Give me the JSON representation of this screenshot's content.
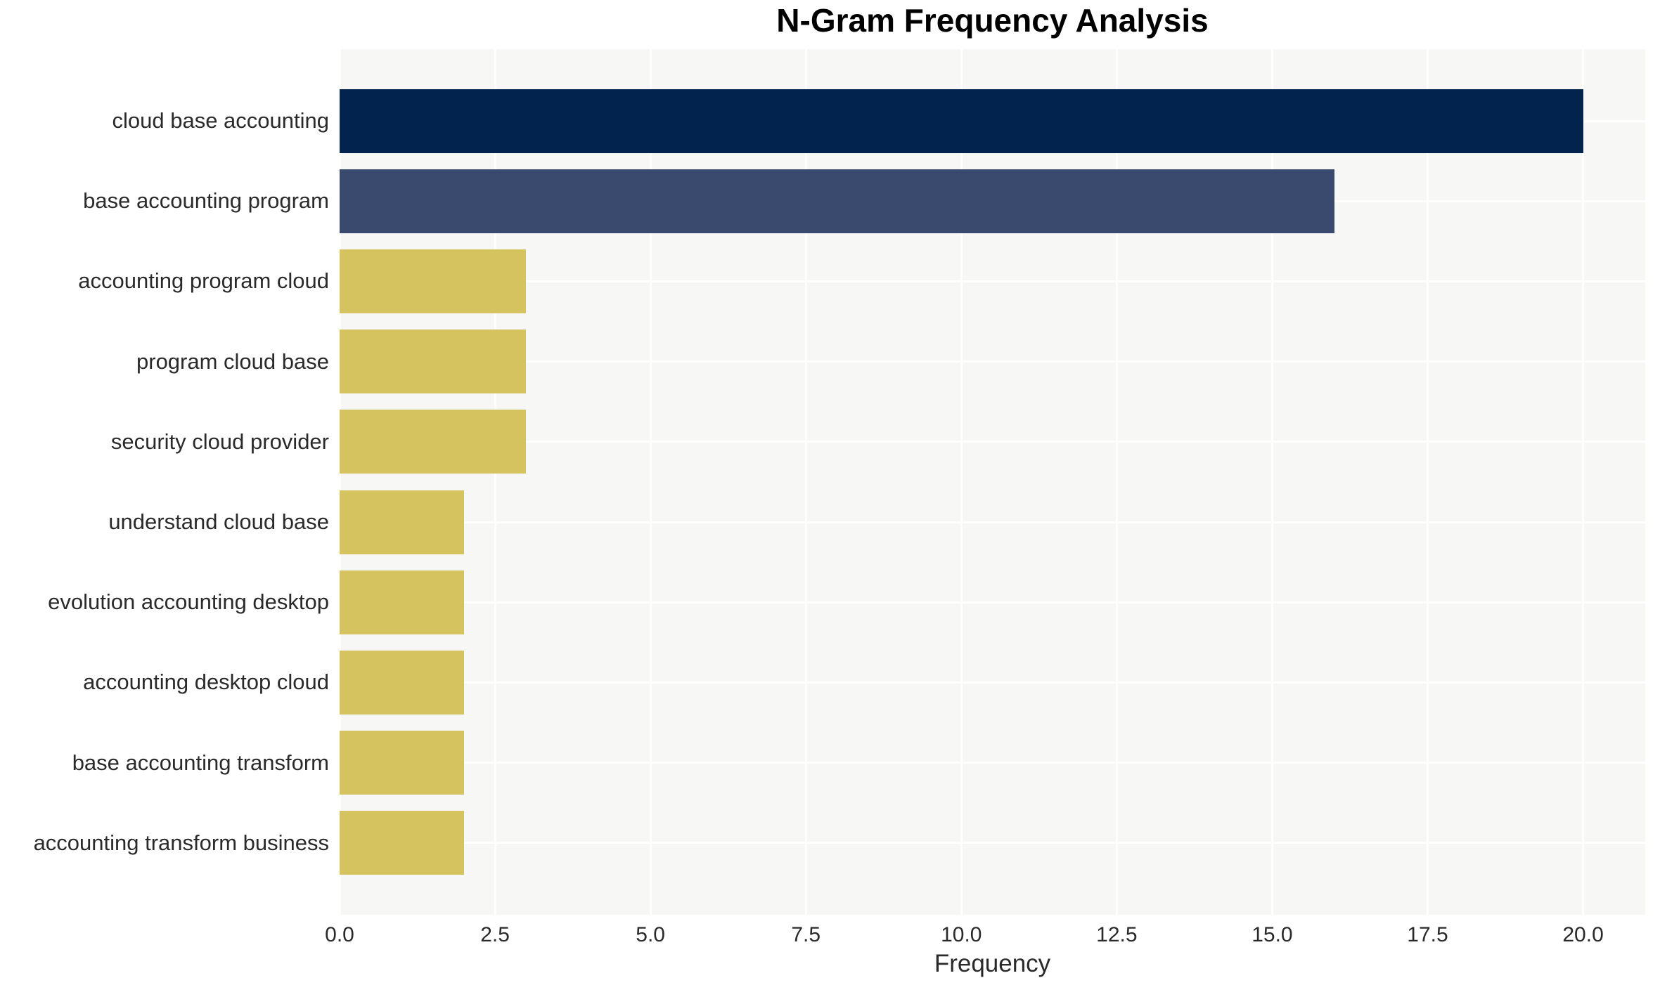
{
  "page": {
    "title": "N-Gram Frequency Analysis"
  },
  "chart_data": {
    "type": "bar",
    "orientation": "horizontal",
    "title": "N-Gram Frequency Analysis",
    "xlabel": "Frequency",
    "categories": [
      "cloud base accounting",
      "base accounting program",
      "accounting program cloud",
      "program cloud base",
      "security cloud provider",
      "understand cloud base",
      "evolution accounting desktop",
      "accounting desktop cloud",
      "base accounting transform",
      "accounting transform business"
    ],
    "values": [
      20,
      16,
      3,
      3,
      3,
      2,
      2,
      2,
      2,
      2
    ],
    "bar_colors": [
      "#02234e",
      "#3a496e",
      "#d5c35f",
      "#d5c35f",
      "#d5c35f",
      "#d5c35f",
      "#d5c35f",
      "#d5c35f",
      "#d5c35f",
      "#d5c35f"
    ],
    "xticks": [
      "0.0",
      "2.5",
      "5.0",
      "7.5",
      "10.0",
      "12.5",
      "15.0",
      "17.5",
      "20.0"
    ],
    "xtick_values": [
      0,
      2.5,
      5,
      7.5,
      10,
      12.5,
      15,
      17.5,
      20
    ],
    "xlim": [
      0,
      21
    ],
    "grid": true,
    "legend": false,
    "colors": {
      "plot_background": "#f7f7f6",
      "page_background": "#ffffff",
      "gridline": "#ffffff",
      "tick_text": "#2a2a2a",
      "title_text": "#000000"
    }
  }
}
